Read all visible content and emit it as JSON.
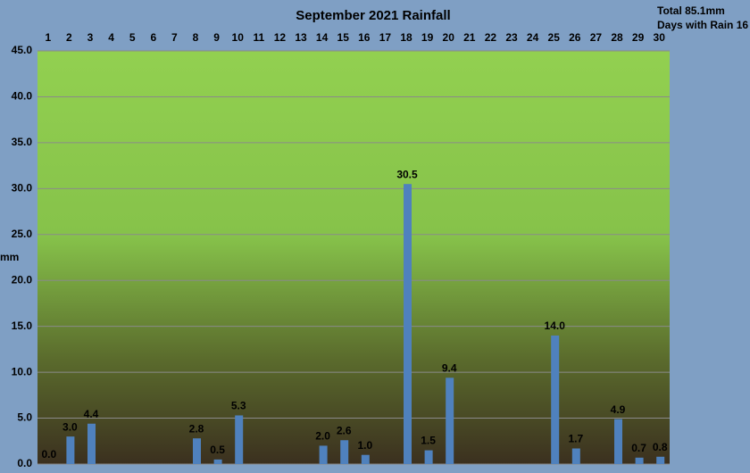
{
  "chart_data": {
    "type": "bar",
    "title": "September 2021 Rainfall",
    "annotations": [
      "Total 85.1mm",
      "Days with Rain 16"
    ],
    "y_label": "mm",
    "categories": [
      "1",
      "2",
      "3",
      "4",
      "5",
      "6",
      "7",
      "8",
      "9",
      "10",
      "11",
      "12",
      "13",
      "14",
      "15",
      "16",
      "17",
      "18",
      "19",
      "20",
      "21",
      "22",
      "23",
      "24",
      "25",
      "26",
      "27",
      "28",
      "29",
      "30"
    ],
    "values": [
      0,
      3,
      4.4,
      null,
      null,
      null,
      null,
      2.8,
      0.5,
      5.3,
      null,
      null,
      null,
      2,
      2.6,
      1,
      null,
      30.5,
      1.5,
      9.4,
      null,
      null,
      null,
      null,
      14,
      1.7,
      null,
      4.9,
      0.7,
      0.8
    ],
    "value_labels": [
      "0.0",
      "3.0",
      "4.4",
      null,
      null,
      null,
      null,
      "2.8",
      "0.5",
      "5.3",
      null,
      null,
      null,
      "2.0",
      "2.6",
      "1.0",
      null,
      "30.5",
      "1.5",
      "9.4",
      null,
      null,
      null,
      null,
      "14.0",
      "1.7",
      null,
      "4.9",
      "0.7",
      "0.8"
    ],
    "color": "#4f81bd",
    "ylim": [
      0,
      45
    ],
    "yticks": [
      {
        "value": 0,
        "label": "0.0"
      },
      {
        "value": 5,
        "label": "5.0"
      },
      {
        "value": 10,
        "label": "10.0"
      },
      {
        "value": 15,
        "label": "15.0"
      },
      {
        "value": 20,
        "label": "20.0"
      },
      {
        "value": 25,
        "label": "25.0"
      },
      {
        "value": 30,
        "label": "30.0"
      },
      {
        "value": 35,
        "label": "35.0"
      },
      {
        "value": 40,
        "label": "40.0"
      },
      {
        "value": 45,
        "label": "45.0"
      }
    ],
    "grid": true
  }
}
